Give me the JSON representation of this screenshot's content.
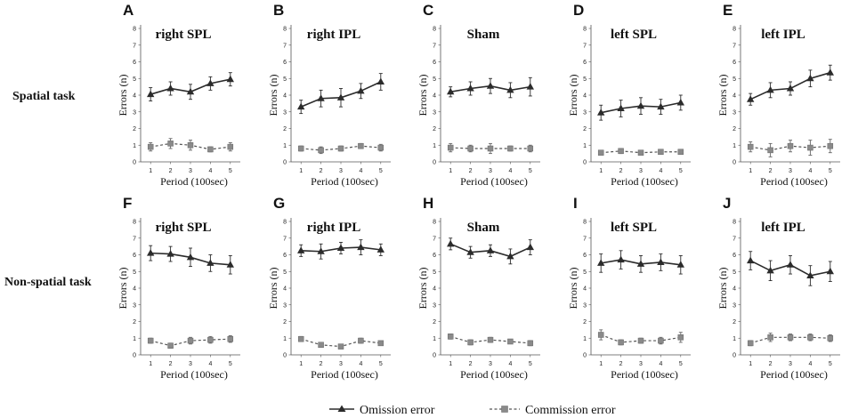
{
  "row_labels": [
    "Spatial task",
    "Non-spatial task"
  ],
  "legend": {
    "omission": "Omission error",
    "commission": "Commission error",
    "colors": {
      "omission": "#2b2b2b",
      "commission": "#8a8a8a"
    }
  },
  "chart_data": [
    {
      "type": "line",
      "panel": "A",
      "title": "right SPL",
      "row": 0,
      "xlabel": "Period (100sec)",
      "ylabel": "Errors (n)",
      "ylim": [
        0,
        8
      ],
      "yticks": [
        0,
        1,
        2,
        3,
        4,
        5,
        6,
        7,
        8
      ],
      "x": [
        1,
        2,
        3,
        4,
        5
      ],
      "series": [
        {
          "name": "Omission error",
          "values": [
            4.05,
            4.4,
            4.2,
            4.7,
            4.95
          ],
          "errors": [
            0.4,
            0.4,
            0.45,
            0.4,
            0.4
          ]
        },
        {
          "name": "Commission error",
          "values": [
            0.9,
            1.1,
            1.0,
            0.75,
            0.9
          ],
          "errors": [
            0.25,
            0.3,
            0.3,
            0.15,
            0.25
          ]
        }
      ]
    },
    {
      "type": "line",
      "panel": "B",
      "title": "right IPL",
      "row": 0,
      "xlabel": "Period (100sec)",
      "ylabel": "Errors (n)",
      "ylim": [
        0,
        8
      ],
      "yticks": [
        0,
        1,
        2,
        3,
        4,
        5,
        6,
        7,
        8
      ],
      "x": [
        1,
        2,
        3,
        4,
        5
      ],
      "series": [
        {
          "name": "Omission error",
          "values": [
            3.3,
            3.8,
            3.85,
            4.25,
            4.8
          ],
          "errors": [
            0.4,
            0.5,
            0.55,
            0.45,
            0.5
          ]
        },
        {
          "name": "Commission error",
          "values": [
            0.8,
            0.7,
            0.8,
            0.95,
            0.85
          ],
          "errors": [
            0.15,
            0.2,
            0.15,
            0.15,
            0.2
          ]
        }
      ]
    },
    {
      "type": "line",
      "panel": "C",
      "title": "Sham",
      "row": 0,
      "xlabel": "Period (100sec)",
      "ylabel": "Errors (n)",
      "ylim": [
        0,
        8
      ],
      "yticks": [
        0,
        1,
        2,
        3,
        4,
        5,
        6,
        7,
        8
      ],
      "x": [
        1,
        2,
        3,
        4,
        5
      ],
      "series": [
        {
          "name": "Omission error",
          "values": [
            4.2,
            4.4,
            4.55,
            4.3,
            4.5
          ],
          "errors": [
            0.3,
            0.4,
            0.45,
            0.45,
            0.55
          ]
        },
        {
          "name": "Commission error",
          "values": [
            0.85,
            0.8,
            0.8,
            0.8,
            0.8
          ],
          "errors": [
            0.25,
            0.2,
            0.3,
            0.15,
            0.2
          ]
        }
      ]
    },
    {
      "type": "line",
      "panel": "D",
      "title": "left SPL",
      "row": 0,
      "xlabel": "Period (100sec)",
      "ylabel": "Errors (n)",
      "ylim": [
        0,
        8
      ],
      "yticks": [
        0,
        1,
        2,
        3,
        4,
        5,
        6,
        7,
        8
      ],
      "x": [
        1,
        2,
        3,
        4,
        5
      ],
      "series": [
        {
          "name": "Omission error",
          "values": [
            2.95,
            3.2,
            3.35,
            3.3,
            3.55
          ],
          "errors": [
            0.45,
            0.5,
            0.5,
            0.45,
            0.45
          ]
        },
        {
          "name": "Commission error",
          "values": [
            0.55,
            0.65,
            0.55,
            0.6,
            0.6
          ],
          "errors": [
            0.1,
            0.15,
            0.1,
            0.1,
            0.1
          ]
        }
      ]
    },
    {
      "type": "line",
      "panel": "E",
      "title": "left IPL",
      "row": 0,
      "xlabel": "Period (100sec)",
      "ylabel": "Errors (n)",
      "ylim": [
        0,
        8
      ],
      "yticks": [
        0,
        1,
        2,
        3,
        4,
        5,
        6,
        7,
        8
      ],
      "x": [
        1,
        2,
        3,
        4,
        5
      ],
      "series": [
        {
          "name": "Omission error",
          "values": [
            3.75,
            4.3,
            4.4,
            5.0,
            5.35
          ],
          "errors": [
            0.35,
            0.45,
            0.4,
            0.5,
            0.45
          ]
        },
        {
          "name": "Commission error",
          "values": [
            0.9,
            0.7,
            0.95,
            0.85,
            0.95
          ],
          "errors": [
            0.3,
            0.4,
            0.35,
            0.45,
            0.4
          ]
        }
      ]
    },
    {
      "type": "line",
      "panel": "F",
      "title": "right SPL",
      "row": 1,
      "xlabel": "Period (100sec)",
      "ylabel": "Errors (n)",
      "ylim": [
        0,
        8
      ],
      "yticks": [
        0,
        1,
        2,
        3,
        4,
        5,
        6,
        7,
        8
      ],
      "x": [
        1,
        2,
        3,
        4,
        5
      ],
      "series": [
        {
          "name": "Omission error",
          "values": [
            6.1,
            6.05,
            5.85,
            5.5,
            5.4
          ],
          "errors": [
            0.45,
            0.45,
            0.55,
            0.5,
            0.55
          ]
        },
        {
          "name": "Commission error",
          "values": [
            0.85,
            0.55,
            0.85,
            0.9,
            0.95
          ],
          "errors": [
            0.15,
            0.15,
            0.2,
            0.2,
            0.2
          ]
        }
      ]
    },
    {
      "type": "line",
      "panel": "G",
      "title": "right IPL",
      "row": 1,
      "xlabel": "Period (100sec)",
      "ylabel": "Errors (n)",
      "ylim": [
        0,
        8
      ],
      "yticks": [
        0,
        1,
        2,
        3,
        4,
        5,
        6,
        7,
        8
      ],
      "x": [
        1,
        2,
        3,
        4,
        5
      ],
      "series": [
        {
          "name": "Omission error",
          "values": [
            6.25,
            6.2,
            6.4,
            6.45,
            6.3
          ],
          "errors": [
            0.35,
            0.45,
            0.35,
            0.45,
            0.35
          ]
        },
        {
          "name": "Commission error",
          "values": [
            0.95,
            0.6,
            0.5,
            0.85,
            0.7
          ],
          "errors": [
            0.15,
            0.1,
            0.1,
            0.15,
            0.1
          ]
        }
      ]
    },
    {
      "type": "line",
      "panel": "H",
      "title": "Sham",
      "row": 1,
      "xlabel": "Period (100sec)",
      "ylabel": "Errors (n)",
      "ylim": [
        0,
        8
      ],
      "yticks": [
        0,
        1,
        2,
        3,
        4,
        5,
        6,
        7,
        8
      ],
      "x": [
        1,
        2,
        3,
        4,
        5
      ],
      "series": [
        {
          "name": "Omission error",
          "values": [
            6.65,
            6.15,
            6.25,
            5.9,
            6.45
          ],
          "errors": [
            0.35,
            0.35,
            0.35,
            0.45,
            0.45
          ]
        },
        {
          "name": "Commission error",
          "values": [
            1.1,
            0.75,
            0.9,
            0.8,
            0.7
          ],
          "errors": [
            0.15,
            0.15,
            0.15,
            0.1,
            0.15
          ]
        }
      ]
    },
    {
      "type": "line",
      "panel": "I",
      "title": "left SPL",
      "row": 1,
      "xlabel": "Period (100sec)",
      "ylabel": "Errors (n)",
      "ylim": [
        0,
        8
      ],
      "yticks": [
        0,
        1,
        2,
        3,
        4,
        5,
        6,
        7,
        8
      ],
      "x": [
        1,
        2,
        3,
        4,
        5
      ],
      "series": [
        {
          "name": "Omission error",
          "values": [
            5.5,
            5.7,
            5.45,
            5.55,
            5.4
          ],
          "errors": [
            0.55,
            0.55,
            0.5,
            0.5,
            0.55
          ]
        },
        {
          "name": "Commission error",
          "values": [
            1.2,
            0.75,
            0.85,
            0.85,
            1.05
          ],
          "errors": [
            0.3,
            0.15,
            0.15,
            0.2,
            0.3
          ]
        }
      ]
    },
    {
      "type": "line",
      "panel": "J",
      "title": "left IPL",
      "row": 1,
      "xlabel": "Period (100sec)",
      "ylabel": "Errors (n)",
      "ylim": [
        0,
        8
      ],
      "yticks": [
        0,
        1,
        2,
        3,
        4,
        5,
        6,
        7,
        8
      ],
      "x": [
        1,
        2,
        3,
        4,
        5
      ],
      "series": [
        {
          "name": "Omission error",
          "values": [
            5.65,
            5.05,
            5.4,
            4.75,
            5.0
          ],
          "errors": [
            0.55,
            0.6,
            0.55,
            0.6,
            0.6
          ]
        },
        {
          "name": "Commission error",
          "values": [
            0.7,
            1.05,
            1.05,
            1.05,
            1.0
          ],
          "errors": [
            0.15,
            0.25,
            0.2,
            0.2,
            0.2
          ]
        }
      ]
    }
  ]
}
